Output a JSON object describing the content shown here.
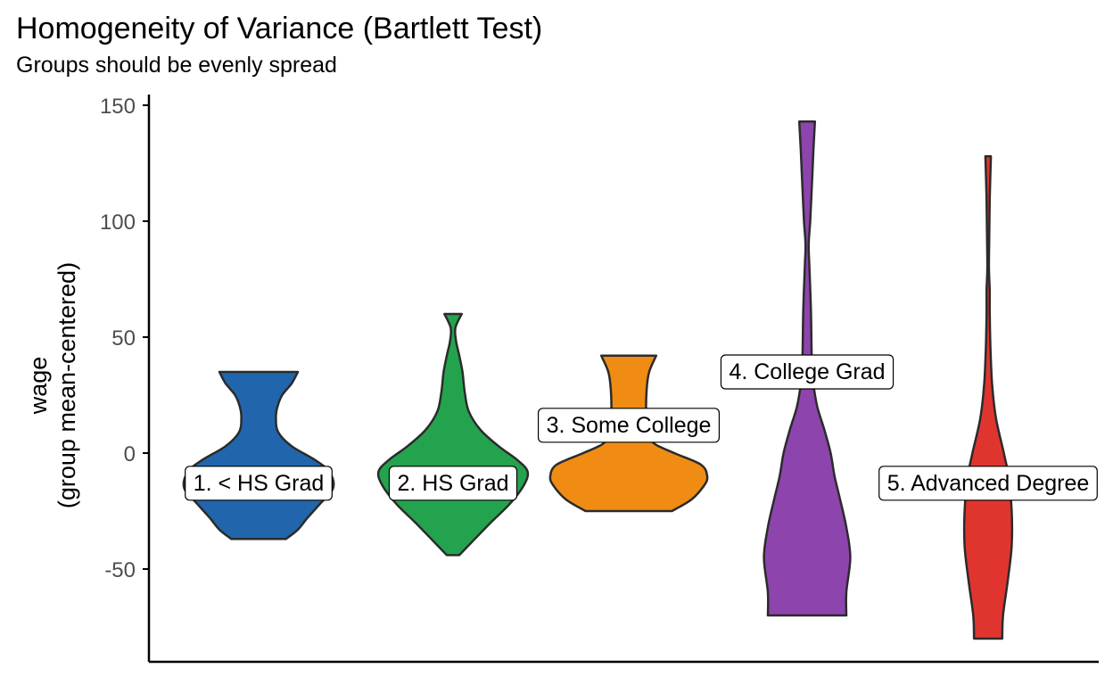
{
  "chart_data": {
    "type": "violin",
    "title": "Homogeneity of Variance (Bartlett Test)",
    "subtitle": "Groups should be evenly spread",
    "ylabel": "wage",
    "ylabel2": "(group mean-centered)",
    "xlabel": "",
    "ylim": [
      -80,
      150
    ],
    "yticks": [
      150,
      100,
      50,
      0,
      -50
    ],
    "ytick_labels": [
      "150",
      "100",
      "50",
      "0",
      "-50"
    ],
    "grid": false,
    "legend": "none",
    "groups": [
      {
        "label": "1. < HS Grad",
        "color": "#2166ac",
        "min": -37,
        "max": 35,
        "label_y": -13,
        "density": [
          [
            -37,
            0.35
          ],
          [
            -33,
            0.5
          ],
          [
            -28,
            0.62
          ],
          [
            -22,
            0.78
          ],
          [
            -15,
            0.95
          ],
          [
            -8,
            0.9
          ],
          [
            -3,
            0.72
          ],
          [
            3,
            0.42
          ],
          [
            9,
            0.25
          ],
          [
            15,
            0.22
          ],
          [
            20,
            0.24
          ],
          [
            25,
            0.3
          ],
          [
            30,
            0.42
          ],
          [
            35,
            0.5
          ]
        ]
      },
      {
        "label": "2. HS Grad",
        "color": "#24a34f",
        "min": -44,
        "max": 60,
        "label_y": -13,
        "density": [
          [
            -44,
            0.08
          ],
          [
            -38,
            0.25
          ],
          [
            -30,
            0.48
          ],
          [
            -22,
            0.72
          ],
          [
            -14,
            0.9
          ],
          [
            -8,
            0.95
          ],
          [
            -3,
            0.82
          ],
          [
            3,
            0.58
          ],
          [
            10,
            0.35
          ],
          [
            18,
            0.2
          ],
          [
            26,
            0.15
          ],
          [
            35,
            0.12
          ],
          [
            42,
            0.08
          ],
          [
            48,
            0.04
          ],
          [
            54,
            0.03
          ],
          [
            60,
            0.11
          ]
        ]
      },
      {
        "label": "3. Some College",
        "color": "#f08c14",
        "min": -25,
        "max": 42,
        "label_y": 12,
        "density": [
          [
            -25,
            0.55
          ],
          [
            -20,
            0.8
          ],
          [
            -14,
            0.96
          ],
          [
            -10,
            1.0
          ],
          [
            -5,
            0.92
          ],
          [
            0,
            0.58
          ],
          [
            4,
            0.33
          ],
          [
            8,
            0.26
          ],
          [
            14,
            0.23
          ],
          [
            20,
            0.22
          ],
          [
            28,
            0.23
          ],
          [
            35,
            0.26
          ],
          [
            42,
            0.35
          ]
        ]
      },
      {
        "label": "4. College Grad",
        "color": "#8e44ad",
        "min": -70,
        "max": 143,
        "label_y": 35,
        "density": [
          [
            -70,
            0.5
          ],
          [
            -60,
            0.5
          ],
          [
            -45,
            0.55
          ],
          [
            -32,
            0.5
          ],
          [
            -20,
            0.42
          ],
          [
            -10,
            0.35
          ],
          [
            0,
            0.3
          ],
          [
            10,
            0.22
          ],
          [
            20,
            0.13
          ],
          [
            30,
            0.08
          ],
          [
            40,
            0.06
          ],
          [
            60,
            0.05
          ],
          [
            80,
            0.03
          ],
          [
            90,
            0.02
          ],
          [
            100,
            0.04
          ],
          [
            115,
            0.06
          ],
          [
            130,
            0.08
          ],
          [
            143,
            0.1
          ]
        ]
      },
      {
        "label": "5. Advanced Degree",
        "color": "#e0352f",
        "min": -80,
        "max": 128,
        "label_y": -13,
        "density": [
          [
            -80,
            0.18
          ],
          [
            -70,
            0.19
          ],
          [
            -55,
            0.25
          ],
          [
            -40,
            0.3
          ],
          [
            -25,
            0.3
          ],
          [
            -10,
            0.26
          ],
          [
            0,
            0.2
          ],
          [
            15,
            0.1
          ],
          [
            30,
            0.05
          ],
          [
            45,
            0.03
          ],
          [
            60,
            0.02
          ],
          [
            70,
            0.02
          ],
          [
            80,
            0.01
          ],
          [
            95,
            0.015
          ],
          [
            110,
            0.02
          ],
          [
            128,
            0.035
          ]
        ]
      }
    ]
  }
}
